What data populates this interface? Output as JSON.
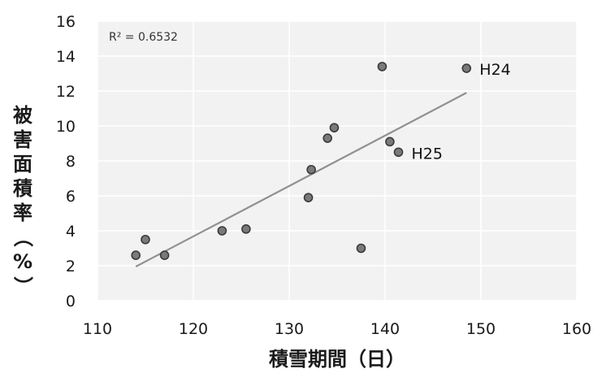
{
  "chart_data": {
    "type": "scatter",
    "title": "",
    "xlabel": "積雪期間（日）",
    "ylabel": "被害面積率（%）",
    "xlim": [
      110,
      160
    ],
    "ylim": [
      0,
      16
    ],
    "xticks": [
      110,
      120,
      130,
      140,
      150,
      160
    ],
    "yticks": [
      0,
      2,
      4,
      6,
      8,
      10,
      12,
      14,
      16
    ],
    "grid": true,
    "legend": "none",
    "points": [
      {
        "x": 114.0,
        "y": 2.6
      },
      {
        "x": 115.0,
        "y": 3.5
      },
      {
        "x": 117.0,
        "y": 2.6
      },
      {
        "x": 123.0,
        "y": 4.0
      },
      {
        "x": 125.5,
        "y": 4.1
      },
      {
        "x": 132.0,
        "y": 5.9
      },
      {
        "x": 132.3,
        "y": 7.5
      },
      {
        "x": 134.0,
        "y": 9.3
      },
      {
        "x": 134.7,
        "y": 9.9
      },
      {
        "x": 137.5,
        "y": 3.0
      },
      {
        "x": 139.7,
        "y": 13.4
      },
      {
        "x": 140.5,
        "y": 9.1
      },
      {
        "x": 141.4,
        "y": 8.5
      },
      {
        "x": 148.5,
        "y": 13.3
      }
    ],
    "annotations": [
      {
        "text": "H24",
        "x": 148.5,
        "y": 13.3
      },
      {
        "text": "H25",
        "x": 141.4,
        "y": 8.5
      }
    ],
    "trendline": {
      "type": "linear",
      "x": [
        114.0,
        148.5
      ],
      "y": [
        1.95,
        11.9
      ],
      "r2_label": "R² = 0.6532"
    },
    "colors": {
      "point": "#7a7a7a",
      "point_stroke": "#3a3a3a",
      "trendline": "#909090",
      "plot_bg": "#f2f2f2",
      "grid": "#ffffff"
    }
  }
}
